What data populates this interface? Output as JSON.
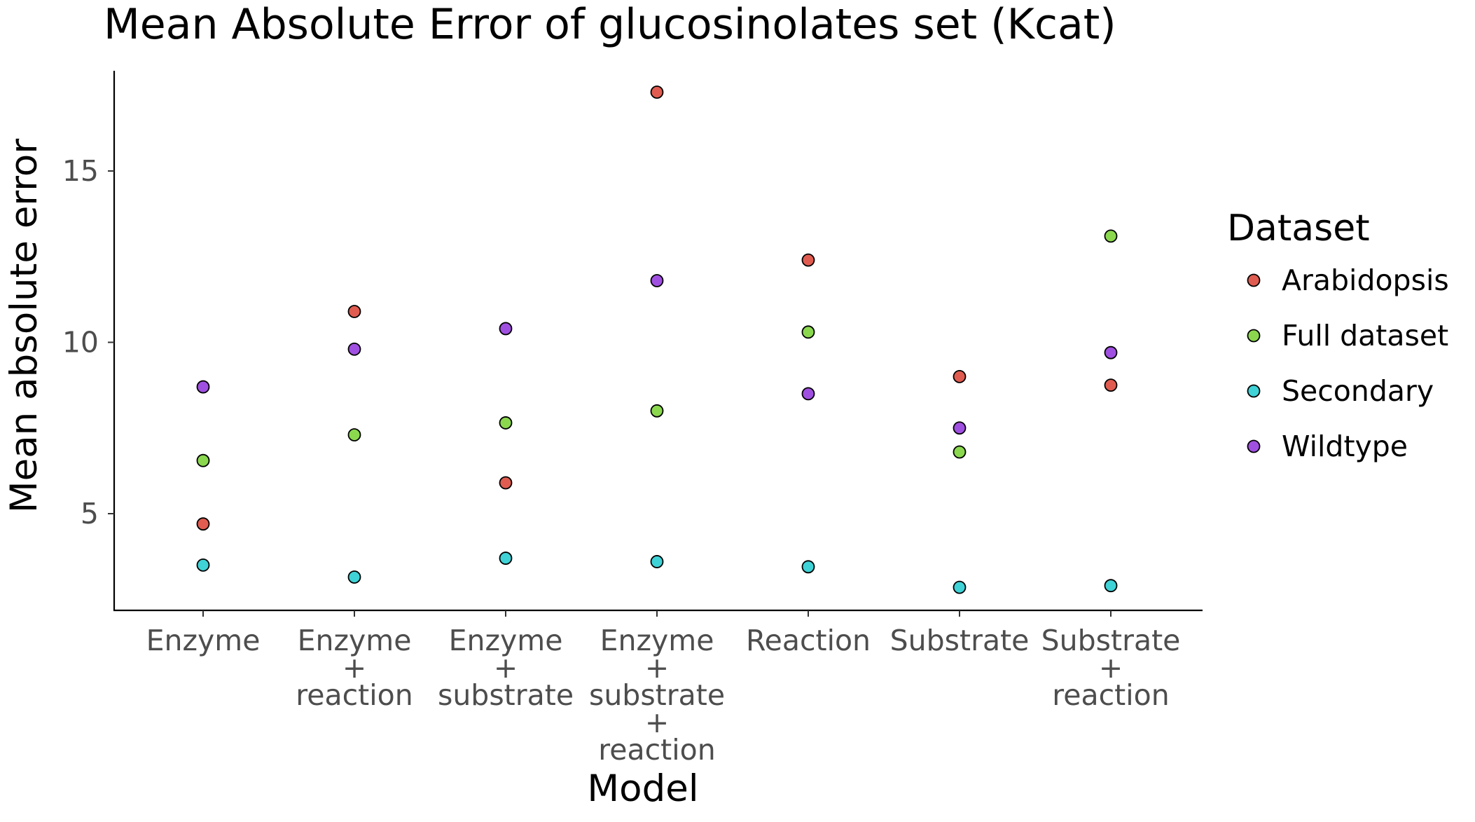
{
  "chart_data": {
    "type": "scatter",
    "title": "Mean Absolute Error of glucosinolates set (Kcat)",
    "xlabel": "Model",
    "ylabel": "Mean absolute error",
    "categories": [
      [
        "Enzyme"
      ],
      [
        "Enzyme",
        "+",
        "reaction"
      ],
      [
        "Enzyme",
        "+",
        "substrate"
      ],
      [
        "Enzyme",
        "+",
        "substrate",
        "+",
        "reaction"
      ],
      [
        "Reaction"
      ],
      [
        "Substrate"
      ],
      [
        "Substrate",
        "+",
        "reaction"
      ]
    ],
    "y_ticks": [
      5,
      10,
      15
    ],
    "ylim": [
      2.2,
      17.9
    ],
    "grid": false,
    "legend": {
      "title": "Dataset",
      "placement": "right"
    },
    "series": [
      {
        "name": "Arabidopsis",
        "color": "#e05c50",
        "values": [
          4.7,
          10.9,
          5.9,
          17.3,
          12.4,
          9.0,
          8.75
        ]
      },
      {
        "name": "Full dataset",
        "color": "#8bd84f",
        "values": [
          6.55,
          7.3,
          7.65,
          8.0,
          10.3,
          6.8,
          13.1
        ]
      },
      {
        "name": "Secondary",
        "color": "#3fd2d6",
        "values": [
          3.5,
          3.15,
          3.7,
          3.6,
          3.45,
          2.85,
          2.9
        ]
      },
      {
        "name": "Wildtype",
        "color": "#a050e0",
        "values": [
          8.7,
          9.8,
          10.4,
          11.8,
          8.5,
          7.5,
          9.7
        ]
      }
    ]
  }
}
